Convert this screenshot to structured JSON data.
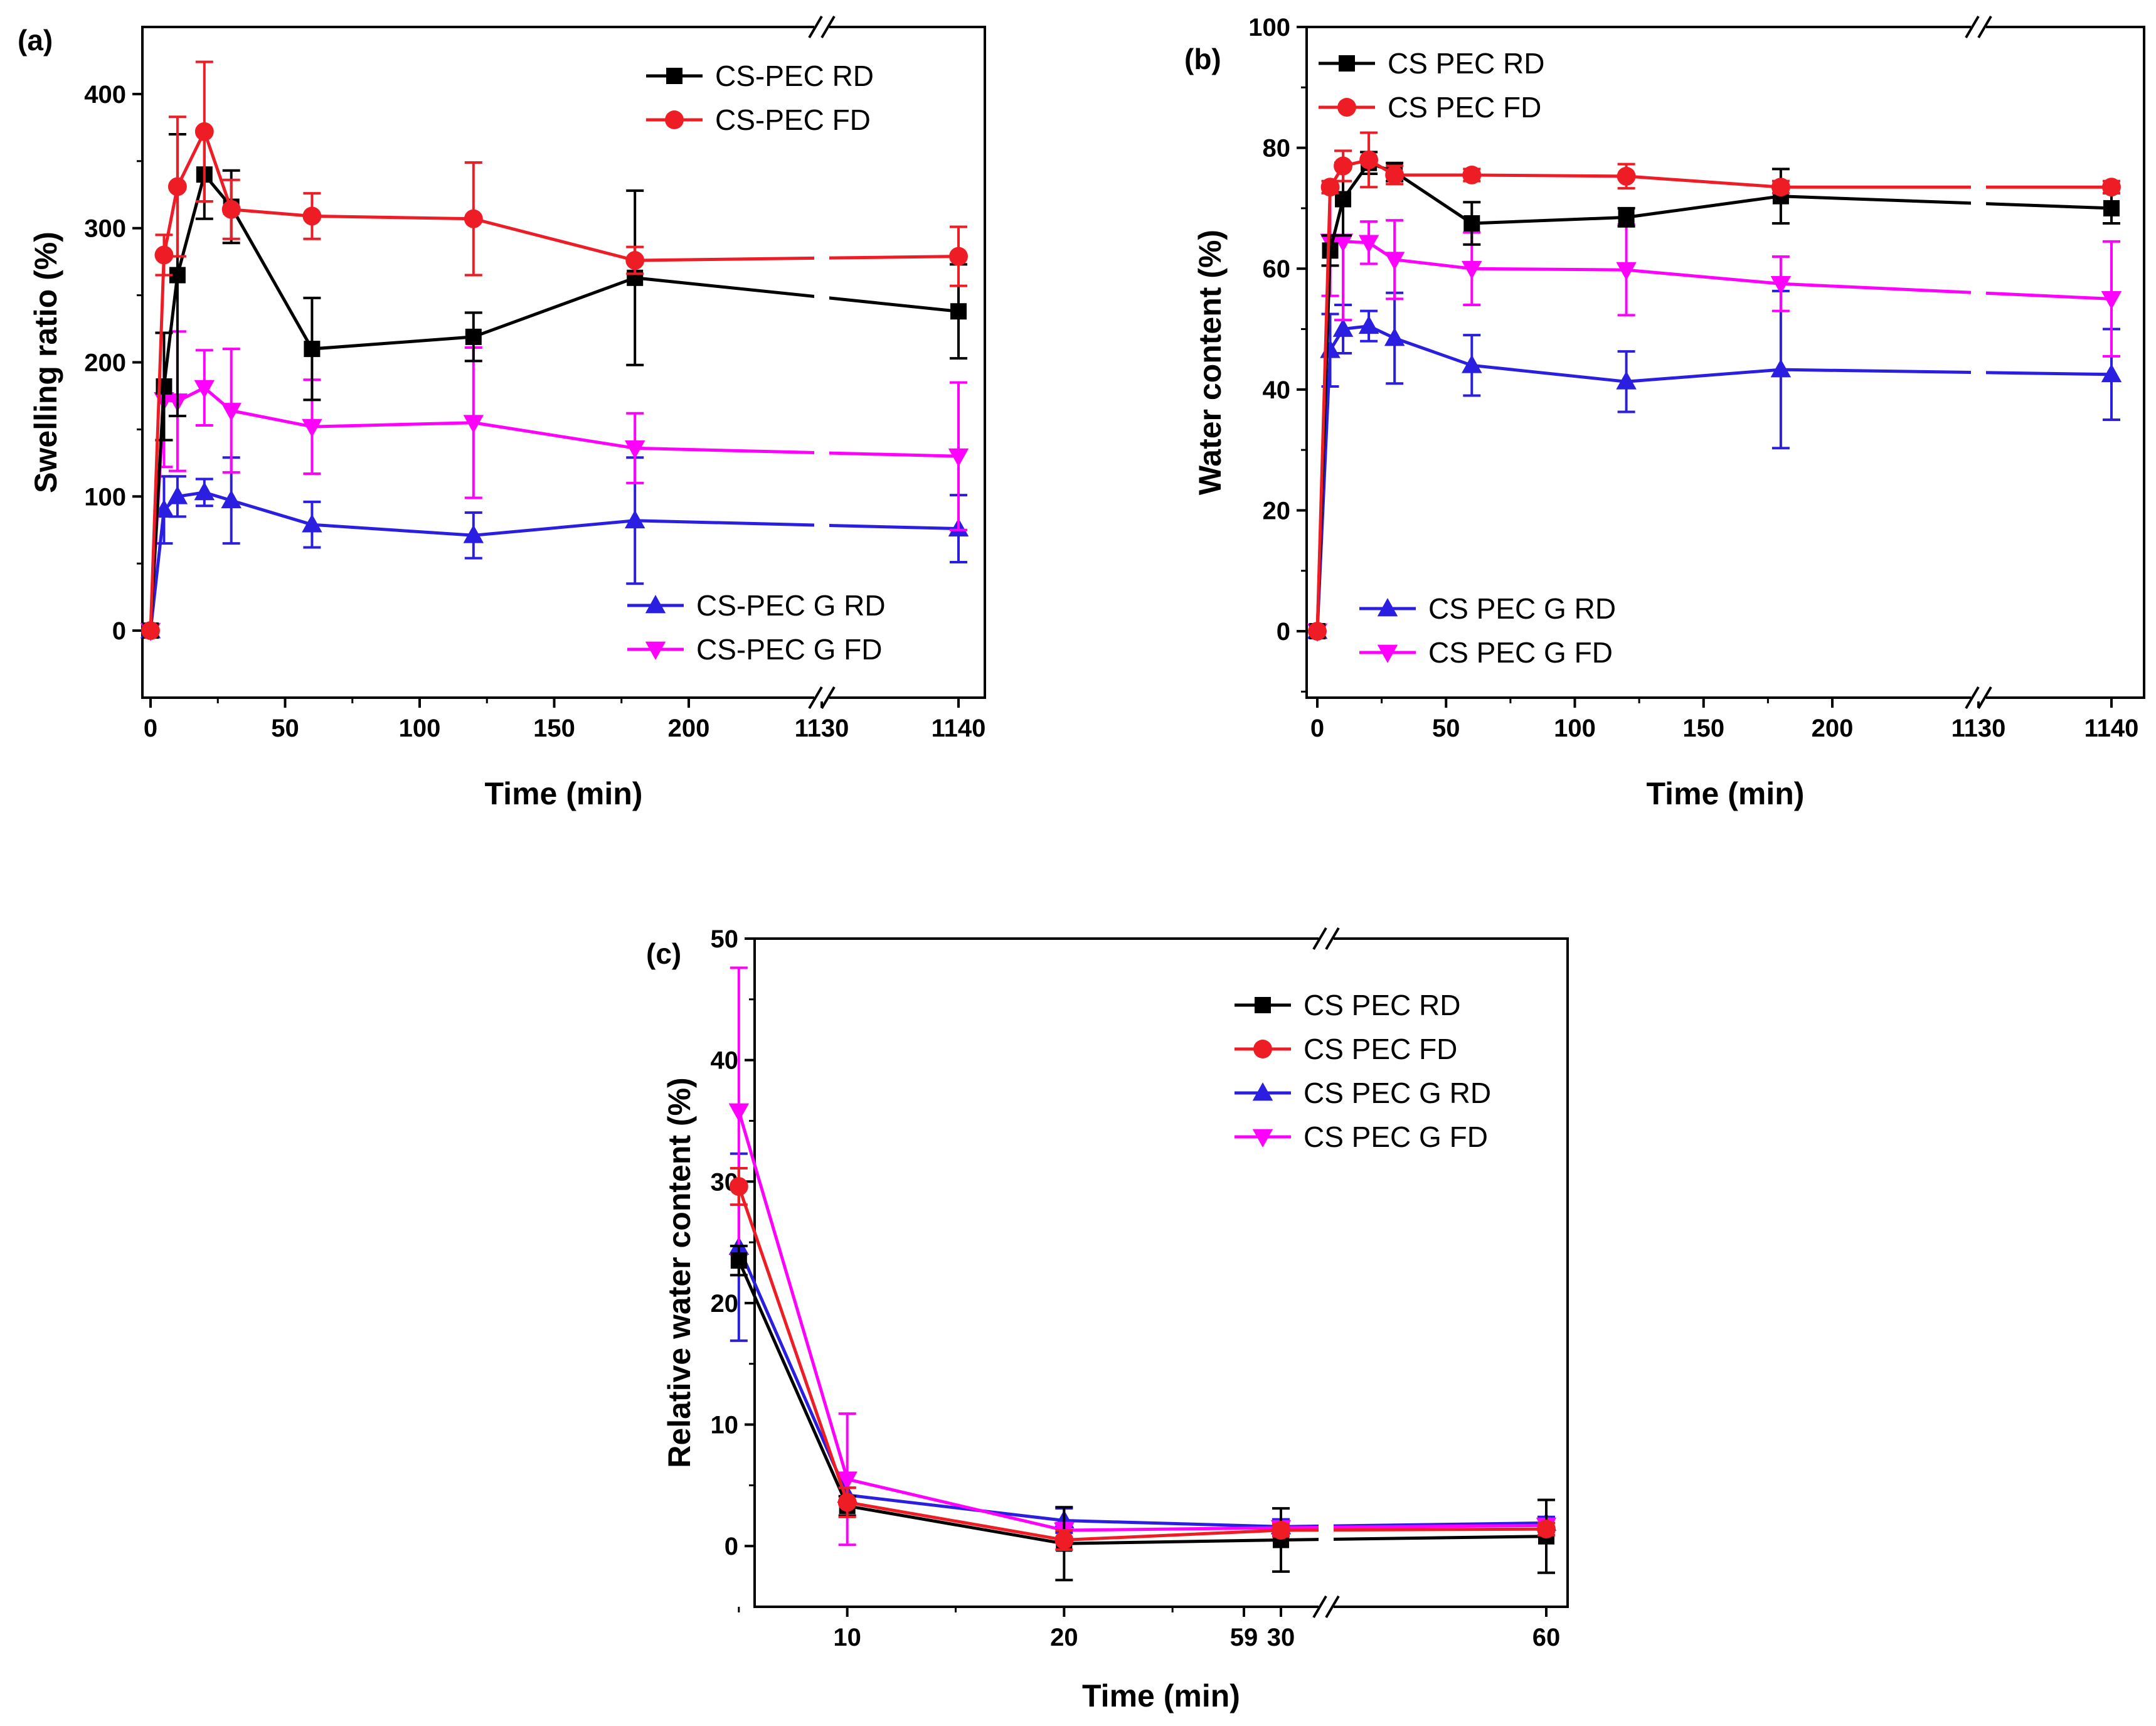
{
  "colors": {
    "rd": "#000000",
    "fd": "#ee1c25",
    "grd": "#2a1fe0",
    "gfd": "#ff00ff"
  },
  "chart_data": [
    {
      "panel": "(a)",
      "type": "line",
      "xlabel": "Time (min)",
      "ylabel": "Swelling ratio (%)",
      "ylim": [
        -50,
        450
      ],
      "yticks": [
        "0",
        "100",
        "200",
        "300",
        "400"
      ],
      "xticks": [
        "0",
        "50",
        "100",
        "150",
        "200",
        "1130",
        "1140"
      ],
      "axis_break": "x between 200 and 1130",
      "legend": [
        "CS-PEC RD",
        "CS-PEC FD",
        "CS-PEC G RD",
        "CS-PEC G FD"
      ],
      "x": [
        0,
        5,
        10,
        20,
        30,
        60,
        120,
        180,
        1140
      ],
      "series": [
        {
          "name": "CS-PEC RD",
          "marker": "square",
          "values": [
            0,
            182,
            265,
            340,
            316,
            210,
            219,
            263,
            238
          ],
          "errors": [
            0,
            40,
            105,
            33,
            27,
            38,
            18,
            65,
            35
          ]
        },
        {
          "name": "CS-PEC FD",
          "marker": "circle",
          "values": [
            0,
            280,
            331,
            372,
            314,
            309,
            307,
            276,
            279
          ],
          "errors": [
            0,
            15,
            52,
            52,
            22,
            17,
            42,
            10,
            22
          ]
        },
        {
          "name": "CS-PEC G RD",
          "marker": "triangle-up",
          "values": [
            0,
            90,
            100,
            103,
            97,
            79,
            71,
            82,
            76
          ],
          "errors": [
            0,
            25,
            15,
            10,
            32,
            17,
            17,
            47,
            25
          ]
        },
        {
          "name": "CS-PEC G FD",
          "marker": "triangle-down",
          "values": [
            0,
            172,
            171,
            181,
            164,
            152,
            155,
            136,
            130
          ],
          "errors": [
            0,
            50,
            52,
            28,
            46,
            35,
            56,
            26,
            55
          ]
        }
      ]
    },
    {
      "panel": "(b)",
      "type": "line",
      "xlabel": "Time (min)",
      "ylabel": "Water content (%)",
      "ylim": [
        -11,
        100
      ],
      "yticks": [
        "0",
        "20",
        "40",
        "60",
        "80",
        "100"
      ],
      "xticks": [
        "0",
        "50",
        "100",
        "150",
        "200",
        "1130",
        "1140"
      ],
      "axis_break": "x between 200 and 1130",
      "legend": [
        "CS PEC RD",
        "CS PEC FD",
        "CS PEC G RD",
        "CS PEC G FD"
      ],
      "x": [
        0,
        5,
        10,
        20,
        30,
        60,
        120,
        180,
        1140
      ],
      "series": [
        {
          "name": "CS PEC RD",
          "marker": "square",
          "values": [
            0,
            63,
            71.5,
            77.5,
            76,
            67.5,
            68.5,
            72,
            70
          ],
          "errors": [
            0,
            2.5,
            6,
            1.8,
            1.5,
            3.5,
            1.5,
            4.5,
            2.5
          ]
        },
        {
          "name": "CS PEC FD",
          "marker": "circle",
          "values": [
            0,
            73.5,
            77,
            78,
            75.5,
            75.5,
            75.3,
            73.5,
            73.5
          ],
          "errors": [
            0,
            1,
            2.5,
            4.5,
            1.5,
            1,
            2,
            1,
            1
          ]
        },
        {
          "name": "CS PEC G RD",
          "marker": "triangle-up",
          "values": [
            0,
            46.5,
            50,
            50.5,
            48.5,
            44,
            41.3,
            43.3,
            42.5
          ],
          "errors": [
            0,
            6,
            4,
            2.5,
            7.5,
            5,
            5,
            13,
            7.5
          ]
        },
        {
          "name": "CS PEC G FD",
          "marker": "triangle-down",
          "values": [
            0,
            64.5,
            64.5,
            64.3,
            61.5,
            60,
            59.8,
            57.5,
            55
          ],
          "errors": [
            0,
            9,
            13,
            3.5,
            6.5,
            6,
            7.5,
            4.5,
            9.5
          ]
        }
      ]
    },
    {
      "panel": "(c)",
      "type": "line",
      "xlabel": "Time (min)",
      "ylabel": "Relative water content (%)",
      "ylim": [
        -5,
        50
      ],
      "yticks": [
        "0",
        "10",
        "20",
        "30",
        "40",
        "50"
      ],
      "xticks": [
        "10",
        "20",
        "30",
        "59",
        "60"
      ],
      "axis_break": "x between 30 and 59",
      "legend": [
        "CS PEC RD",
        "CS PEC FD",
        "CS PEC G RD",
        "CS PEC G FD"
      ],
      "x": [
        5,
        10,
        20,
        30,
        60
      ],
      "series": [
        {
          "name": "CS PEC RD",
          "marker": "square",
          "values": [
            23.5,
            3.3,
            0.2,
            0.5,
            0.8
          ],
          "errors": [
            1.2,
            0.8,
            3,
            2.6,
            3
          ]
        },
        {
          "name": "CS PEC FD",
          "marker": "circle",
          "values": [
            29.6,
            3.6,
            0.5,
            1.3,
            1.4
          ],
          "errors": [
            1.5,
            1.2,
            0.8,
            0.5,
            0.5
          ]
        },
        {
          "name": "CS PEC G RD",
          "marker": "triangle-up",
          "values": [
            24.6,
            4.2,
            2.1,
            1.6,
            1.9
          ],
          "errors": [
            7.7,
            0.6,
            1,
            0.6,
            0.5
          ]
        },
        {
          "name": "CS PEC G FD",
          "marker": "triangle-down",
          "values": [
            35.8,
            5.5,
            1.3,
            1.5,
            1.7
          ],
          "errors": [
            11.8,
            5.4,
            0.6,
            0.5,
            0.5
          ]
        }
      ]
    }
  ]
}
